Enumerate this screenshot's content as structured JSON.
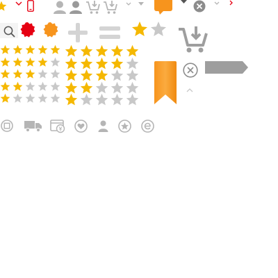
{
  "colors": {
    "star_filled": "#f5b800",
    "star_empty": "#c8c8c8",
    "red_accent": "#e60012",
    "orange_accent": "#f7941d",
    "icon_gray": "#b5b5b5",
    "dark_gray": "#8c8c8c",
    "bar_gray": "#9e9e9e"
  },
  "top_row": {
    "icons": [
      "star-icon",
      "chevron-down-icon",
      "phone-icon",
      "user-icon",
      "user-icon",
      "cart-add-icon",
      "cart-add-icon",
      "chevron-down-icon",
      "chevron-down-icon",
      "chat-bubble-icon",
      "close-circle-icon",
      "chevron-down-icon",
      "chevron-right-icon"
    ]
  },
  "second_row": {
    "icons": [
      "search-icon",
      "red-badge-icon",
      "orange-badge-icon",
      "plus-icon",
      "minus-icon",
      "star-icon",
      "star-icon",
      "cart-add-large-icon"
    ]
  },
  "small_ratings": [
    5,
    4,
    3,
    2,
    1
  ],
  "large_ratings": [
    5,
    4,
    3,
    2,
    1
  ],
  "rating_max": 5,
  "right_column": {
    "icons": [
      "bookmark-icon",
      "close-circle-icon",
      "tag-arrow-icon",
      "chevron-up-icon"
    ]
  },
  "bottom_row": {
    "icons": [
      "close-square-icon",
      "truck-icon",
      "yen-calendar-icon",
      "heart-icon",
      "user-icon",
      "star-circle-icon",
      "e-circle-icon"
    ]
  }
}
